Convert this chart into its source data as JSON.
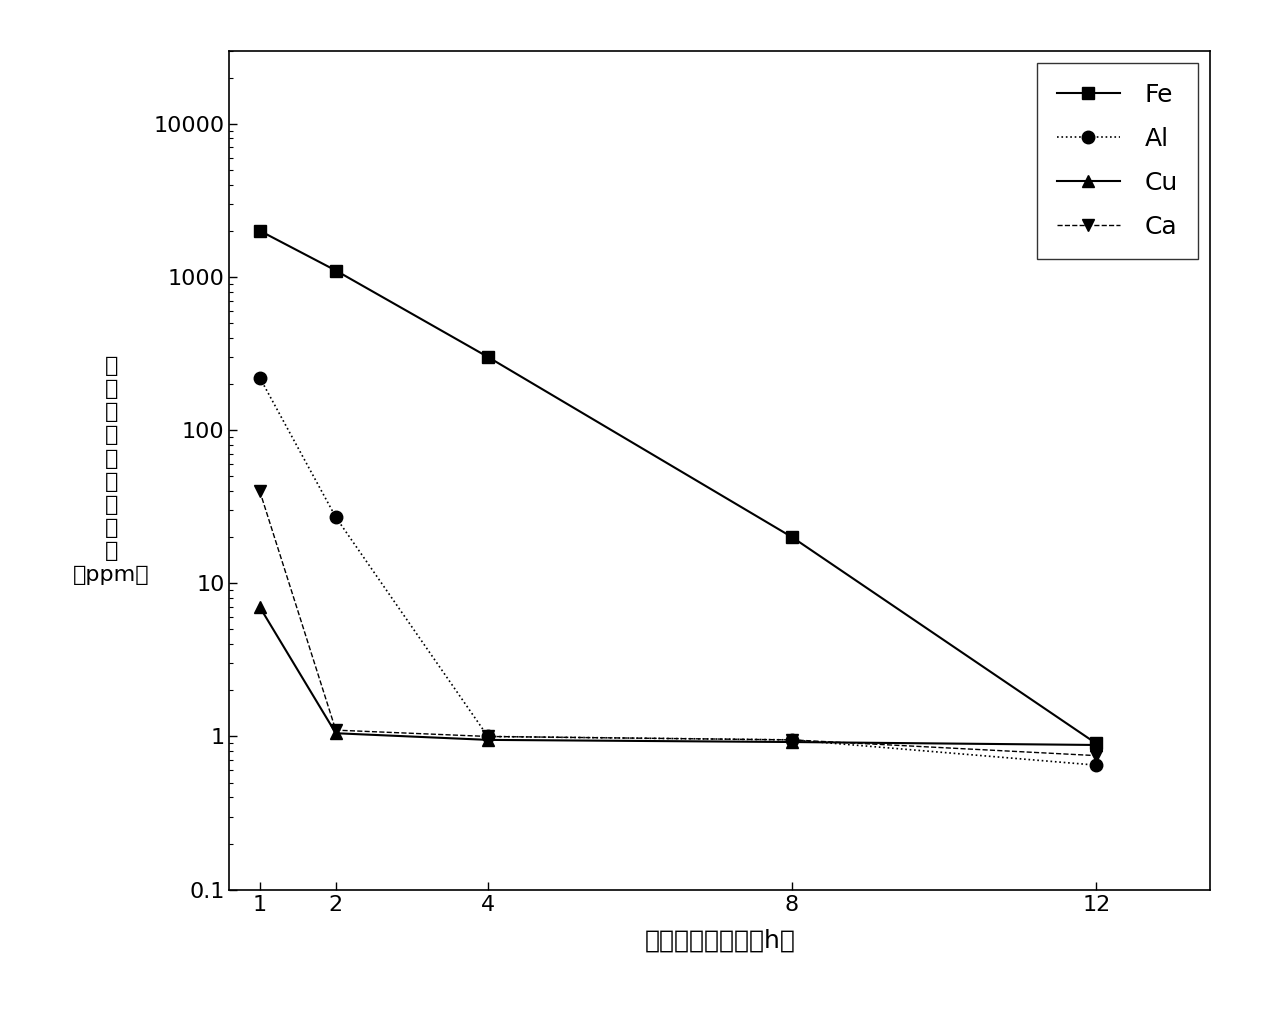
{
  "x": [
    1,
    2,
    4,
    8,
    12
  ],
  "Fe": [
    2000,
    1100,
    300,
    20,
    0.9
  ],
  "Al": [
    220,
    27,
    1.0,
    0.95,
    0.65
  ],
  "Cu": [
    7,
    1.05,
    0.95,
    0.92,
    0.88
  ],
  "Ca": [
    40,
    1.1,
    1.0,
    0.95,
    0.75
  ],
  "xlabel": "气固体反应时间（h）",
  "ylabel_chars": [
    "硬",
    "中",
    "杂",
    "质",
    "元",
    "素",
    "的",
    "含",
    "量",
    "（ppm）"
  ],
  "ylim_bottom": 0.1,
  "ylim_top": 30000,
  "xticks": [
    1,
    2,
    4,
    8,
    12
  ],
  "legend_labels": [
    "Fe",
    "Al",
    "Cu",
    "Ca"
  ],
  "line_styles": [
    "-",
    ":",
    "-",
    "--"
  ],
  "markers": [
    "s",
    "o",
    "^",
    "v"
  ],
  "linewidths": [
    1.5,
    1.2,
    1.5,
    1.0
  ],
  "markersizes": [
    9,
    9,
    9,
    9
  ],
  "background_color": "#ffffff",
  "font_size_labels": 18,
  "font_size_ticks": 16,
  "font_size_legend": 18
}
